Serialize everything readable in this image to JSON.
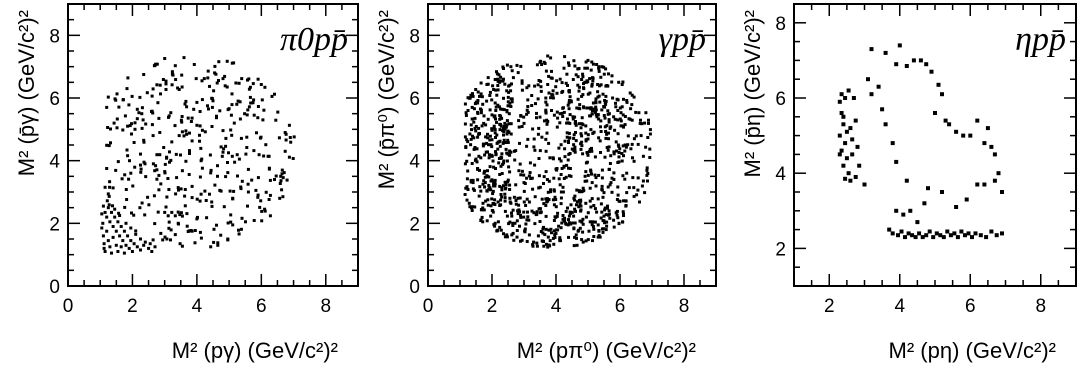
{
  "chart_data": [
    {
      "type": "scatter",
      "title": "π0pp̄",
      "xlabel": "M² (pγ) (GeV/c²)²",
      "ylabel": "M² (p̄γ) (GeV/c²)²",
      "xlim": [
        0,
        9
      ],
      "ylim": [
        0,
        9
      ],
      "xticks": [
        0,
        2,
        4,
        6,
        8
      ],
      "yticks": [
        0,
        2,
        4,
        6,
        8
      ],
      "grid": false,
      "points": [
        [
          1.1,
          2.55
        ],
        [
          1.15,
          2.35
        ],
        [
          1.2,
          2.2
        ],
        [
          1.25,
          2.5
        ],
        [
          1.3,
          2.05
        ],
        [
          1.35,
          2.35
        ],
        [
          1.4,
          1.9
        ],
        [
          1.45,
          2.2
        ],
        [
          1.5,
          1.75
        ],
        [
          1.55,
          2.05
        ],
        [
          1.6,
          1.6
        ],
        [
          1.65,
          1.9
        ],
        [
          1.7,
          1.45
        ],
        [
          1.75,
          1.75
        ],
        [
          1.8,
          1.3
        ],
        [
          1.85,
          1.6
        ],
        [
          1.9,
          1.2
        ],
        [
          1.95,
          1.45
        ],
        [
          2.0,
          1.1
        ],
        [
          2.05,
          1.35
        ],
        [
          2.15,
          1.25
        ],
        [
          2.25,
          1.15
        ],
        [
          2.35,
          1.3
        ],
        [
          2.5,
          1.2
        ],
        [
          2.6,
          1.1
        ],
        [
          1.05,
          1.85
        ],
        [
          1.1,
          1.6
        ],
        [
          1.12,
          1.35
        ],
        [
          1.15,
          1.1
        ],
        [
          1.2,
          1.75
        ],
        [
          1.25,
          1.45
        ],
        [
          1.3,
          1.25
        ],
        [
          1.35,
          1.05
        ],
        [
          1.4,
          1.55
        ],
        [
          1.5,
          1.3
        ],
        [
          1.55,
          1.1
        ],
        [
          1.65,
          1.25
        ],
        [
          1.75,
          1.05
        ],
        [
          1.45,
          2.45
        ],
        [
          1.6,
          2.25
        ],
        [
          1.8,
          2.0
        ],
        [
          1.95,
          1.85
        ],
        [
          2.1,
          1.65
        ],
        [
          2.25,
          1.5
        ],
        [
          2.4,
          1.4
        ],
        [
          2.55,
          1.35
        ],
        [
          2.7,
          1.25
        ],
        [
          1.05,
          2.3
        ],
        [
          1.08,
          2.0
        ],
        [
          1.12,
          1.2
        ]
      ]
    },
    {
      "type": "scatter",
      "title": "γpp̄",
      "xlabel": "M² (pπ⁰) (GeV/c²)²",
      "ylabel": "M² (p̄π⁰) (GeV/c²)²",
      "xlim": [
        0,
        9
      ],
      "ylim": [
        0,
        9
      ],
      "xticks": [
        0,
        2,
        4,
        6,
        8
      ],
      "yticks": [
        0,
        2,
        4,
        6,
        8
      ],
      "grid": false,
      "points": []
    },
    {
      "type": "scatter",
      "title": "ηpp̄",
      "xlabel": "M² (pη) (GeV/c²)²",
      "ylabel": "M² (p̄η) (GeV/c²)²",
      "xlim": [
        1,
        9
      ],
      "ylim": [
        1,
        8.5
      ],
      "xticks": [
        2,
        4,
        6,
        8
      ],
      "yticks": [
        2,
        4,
        6,
        8
      ],
      "grid": false,
      "points": [
        [
          2.3,
          5.9
        ],
        [
          2.35,
          5.6
        ],
        [
          2.4,
          5.3
        ],
        [
          2.3,
          5.0
        ],
        [
          2.45,
          4.8
        ],
        [
          2.35,
          4.6
        ],
        [
          2.5,
          4.4
        ],
        [
          2.4,
          4.2
        ],
        [
          2.55,
          4.0
        ],
        [
          2.45,
          3.85
        ],
        [
          2.6,
          5.2
        ],
        [
          2.65,
          4.9
        ],
        [
          2.35,
          6.1
        ],
        [
          2.7,
          6.0
        ],
        [
          2.55,
          6.2
        ],
        [
          2.75,
          5.4
        ],
        [
          2.8,
          4.7
        ],
        [
          2.85,
          4.2
        ],
        [
          2.6,
          3.8
        ],
        [
          2.4,
          5.5
        ],
        [
          2.5,
          5.1
        ],
        [
          2.3,
          4.5
        ],
        [
          2.65,
          4.5
        ],
        [
          2.45,
          6.0
        ],
        [
          2.75,
          3.9
        ],
        [
          3.0,
          3.7
        ],
        [
          3.1,
          6.5
        ],
        [
          3.2,
          6.1
        ],
        [
          3.4,
          6.3
        ],
        [
          3.5,
          5.7
        ],
        [
          3.6,
          5.3
        ],
        [
          3.8,
          4.8
        ],
        [
          3.9,
          4.3
        ],
        [
          3.2,
          7.3
        ],
        [
          3.6,
          7.2
        ],
        [
          3.9,
          6.9
        ],
        [
          4.0,
          7.4
        ],
        [
          4.2,
          6.85
        ],
        [
          4.4,
          7.0
        ],
        [
          4.6,
          7.0
        ],
        [
          4.75,
          6.9
        ],
        [
          4.9,
          6.7
        ],
        [
          5.1,
          6.35
        ],
        [
          5.2,
          6.1
        ],
        [
          5.0,
          5.6
        ],
        [
          5.3,
          5.4
        ],
        [
          5.4,
          5.3
        ],
        [
          5.6,
          5.1
        ],
        [
          5.8,
          5.0
        ],
        [
          6.0,
          5.0
        ],
        [
          6.2,
          5.4
        ],
        [
          6.4,
          4.8
        ],
        [
          6.5,
          5.2
        ],
        [
          6.6,
          4.7
        ],
        [
          6.7,
          4.5
        ],
        [
          6.8,
          4.0
        ],
        [
          6.9,
          3.5
        ],
        [
          6.7,
          3.8
        ],
        [
          6.4,
          3.7
        ],
        [
          6.2,
          3.7
        ],
        [
          5.9,
          3.3
        ],
        [
          5.6,
          3.1
        ],
        [
          5.2,
          3.5
        ],
        [
          4.7,
          3.2
        ],
        [
          4.3,
          3.0
        ],
        [
          4.1,
          2.9
        ],
        [
          3.9,
          3.0
        ],
        [
          4.8,
          3.6
        ],
        [
          4.5,
          2.7
        ],
        [
          4.2,
          3.8
        ],
        [
          3.7,
          2.5
        ],
        [
          3.8,
          2.4
        ],
        [
          3.95,
          2.35
        ],
        [
          4.05,
          2.45
        ],
        [
          4.15,
          2.3
        ],
        [
          4.25,
          2.4
        ],
        [
          4.35,
          2.35
        ],
        [
          4.45,
          2.3
        ],
        [
          4.55,
          2.4
        ],
        [
          4.65,
          2.3
        ],
        [
          4.75,
          2.35
        ],
        [
          4.85,
          2.45
        ],
        [
          4.95,
          2.3
        ],
        [
          5.05,
          2.4
        ],
        [
          5.15,
          2.35
        ],
        [
          5.25,
          2.3
        ],
        [
          5.35,
          2.45
        ],
        [
          5.45,
          2.35
        ],
        [
          5.55,
          2.4
        ],
        [
          5.65,
          2.3
        ],
        [
          5.75,
          2.45
        ],
        [
          5.85,
          2.35
        ],
        [
          5.95,
          2.4
        ],
        [
          6.05,
          2.3
        ],
        [
          6.15,
          2.4
        ],
        [
          6.3,
          2.35
        ],
        [
          6.45,
          2.3
        ],
        [
          6.6,
          2.45
        ],
        [
          6.75,
          2.35
        ],
        [
          6.9,
          2.4
        ]
      ]
    }
  ]
}
